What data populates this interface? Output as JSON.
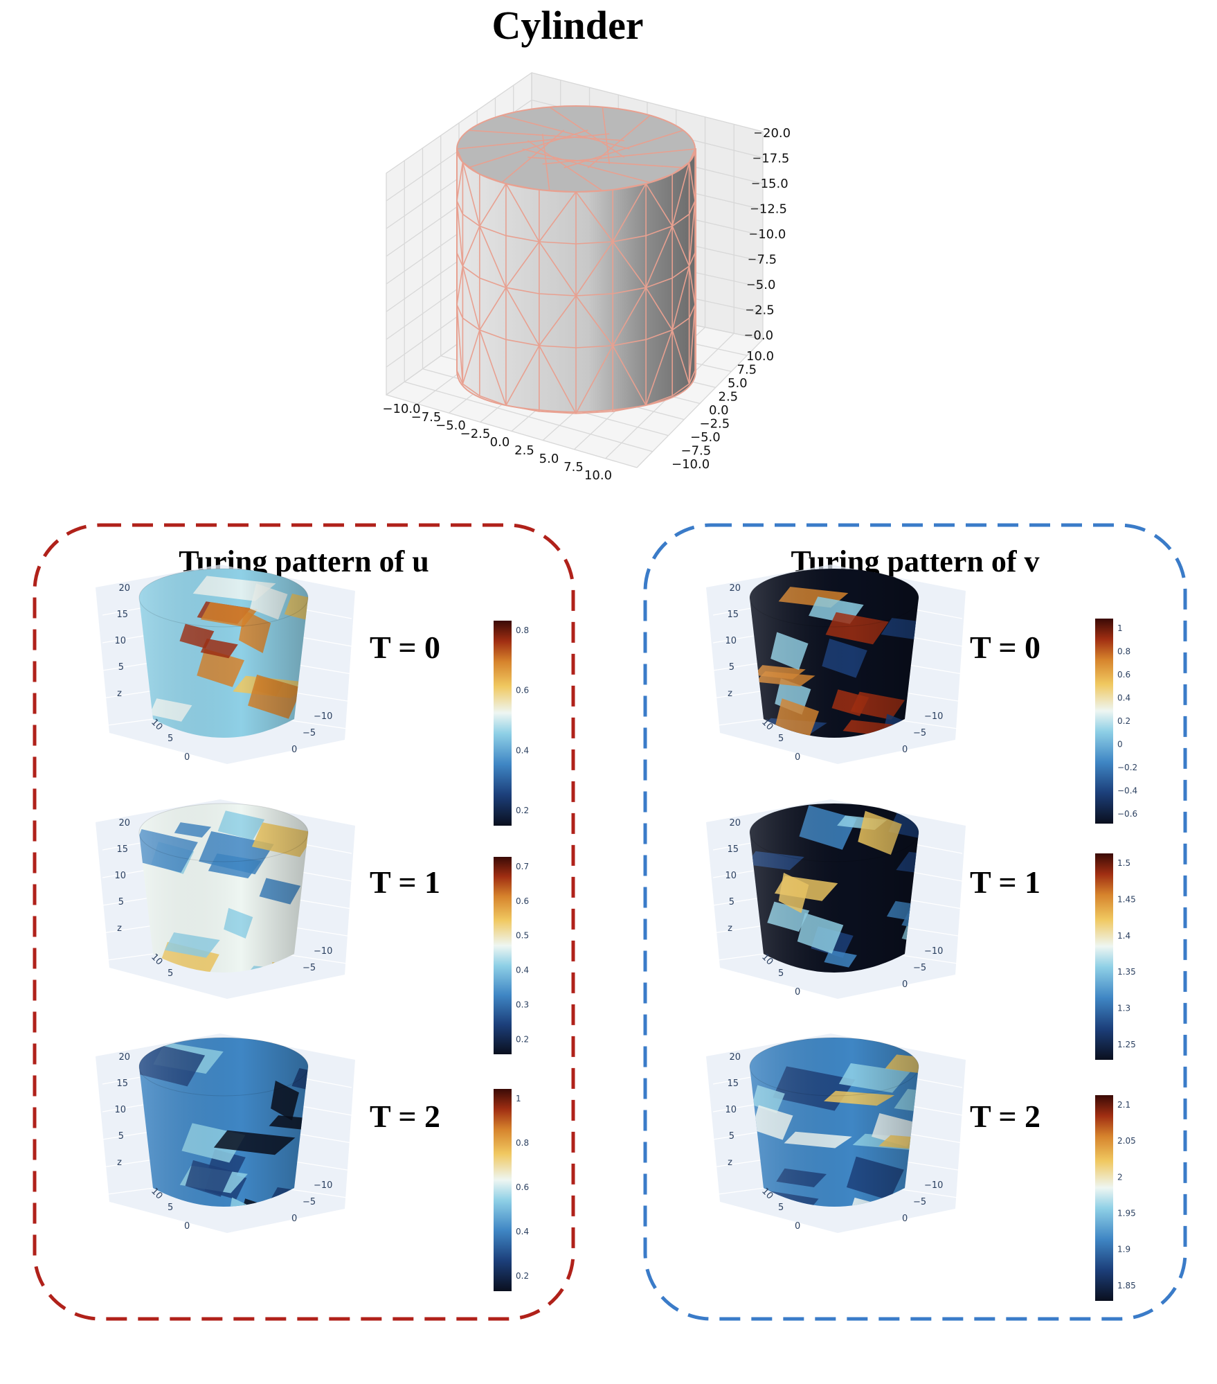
{
  "title": "Cylinder",
  "mesh_axes": {
    "z_ticks": [
      "20.0",
      "17.5",
      "15.0",
      "12.5",
      "10.0",
      "7.5",
      "5.0",
      "2.5",
      "0.0"
    ],
    "x_ticks": [
      "−10.0",
      "−7.5",
      "−5.0",
      "−2.5",
      "0.0",
      "2.5",
      "5.0",
      "7.5",
      "10.0"
    ],
    "y_ticks": [
      "10.0",
      "7.5",
      "5.0",
      "2.5",
      "0.0",
      "−2.5",
      "−5.0",
      "−7.5",
      "−10.0"
    ]
  },
  "panels": [
    {
      "title": "Turing pattern of u",
      "border_color": "#b0211a",
      "rows": [
        {
          "label": "T = 0",
          "colorbar_ticks": [
            "0.8",
            "0.6",
            "0.4",
            "0.2"
          ],
          "scene": {
            "z": [
              "20",
              "15",
              "10",
              "5",
              "z"
            ],
            "y": [
              "10",
              "5",
              "0"
            ],
            "x": [
              "−10",
              "−5",
              "0"
            ]
          }
        },
        {
          "label": "T = 1",
          "colorbar_ticks": [
            "0.7",
            "0.6",
            "0.5",
            "0.4",
            "0.3",
            "0.2"
          ],
          "scene": {
            "z": [
              "20",
              "15",
              "10",
              "5",
              "z"
            ],
            "y": [
              "10",
              "5"
            ],
            "x": [
              "−10",
              "−5"
            ]
          }
        },
        {
          "label": "T = 2",
          "colorbar_ticks": [
            "1",
            "0.8",
            "0.6",
            "0.4",
            "0.2"
          ],
          "scene": {
            "z": [
              "20",
              "15",
              "10",
              "5",
              "z"
            ],
            "y": [
              "10",
              "5",
              "0"
            ],
            "x": [
              "−10",
              "−5",
              "0"
            ]
          }
        }
      ]
    },
    {
      "title": "Turing pattern of v",
      "border_color": "#3a7bc8",
      "rows": [
        {
          "label": "T = 0",
          "colorbar_ticks": [
            "1",
            "0.8",
            "0.6",
            "0.4",
            "0.2",
            "0",
            "−0.2",
            "−0.4",
            "−0.6"
          ],
          "scene": {
            "z": [
              "20",
              "15",
              "10",
              "5",
              "z"
            ],
            "y": [
              "10",
              "5",
              "0"
            ],
            "x": [
              "−10",
              "−5",
              "0"
            ]
          }
        },
        {
          "label": "T = 1",
          "colorbar_ticks": [
            "1.5",
            "1.45",
            "1.4",
            "1.35",
            "1.3",
            "1.25"
          ],
          "scene": {
            "z": [
              "20",
              "15",
              "10",
              "5",
              "z"
            ],
            "y": [
              "10",
              "5",
              "0"
            ],
            "x": [
              "−10",
              "−5",
              "0"
            ]
          }
        },
        {
          "label": "T = 2",
          "colorbar_ticks": [
            "2.1",
            "2.05",
            "2",
            "1.95",
            "1.9",
            "1.85"
          ],
          "scene": {
            "z": [
              "20",
              "15",
              "10",
              "5",
              "z"
            ],
            "y": [
              "10",
              "5",
              "0"
            ],
            "x": [
              "−10",
              "−5",
              "0"
            ]
          }
        }
      ]
    }
  ],
  "colors": {
    "colorscale": [
      "#0a0f1e",
      "#1c3f7a",
      "#3f86c4",
      "#8fd0e6",
      "#eef6f2",
      "#f0c860",
      "#d6832c",
      "#a02e12",
      "#3a0a06"
    ],
    "mesh_edge": "#e8a090",
    "scene_bg": "#e5ecf6"
  }
}
